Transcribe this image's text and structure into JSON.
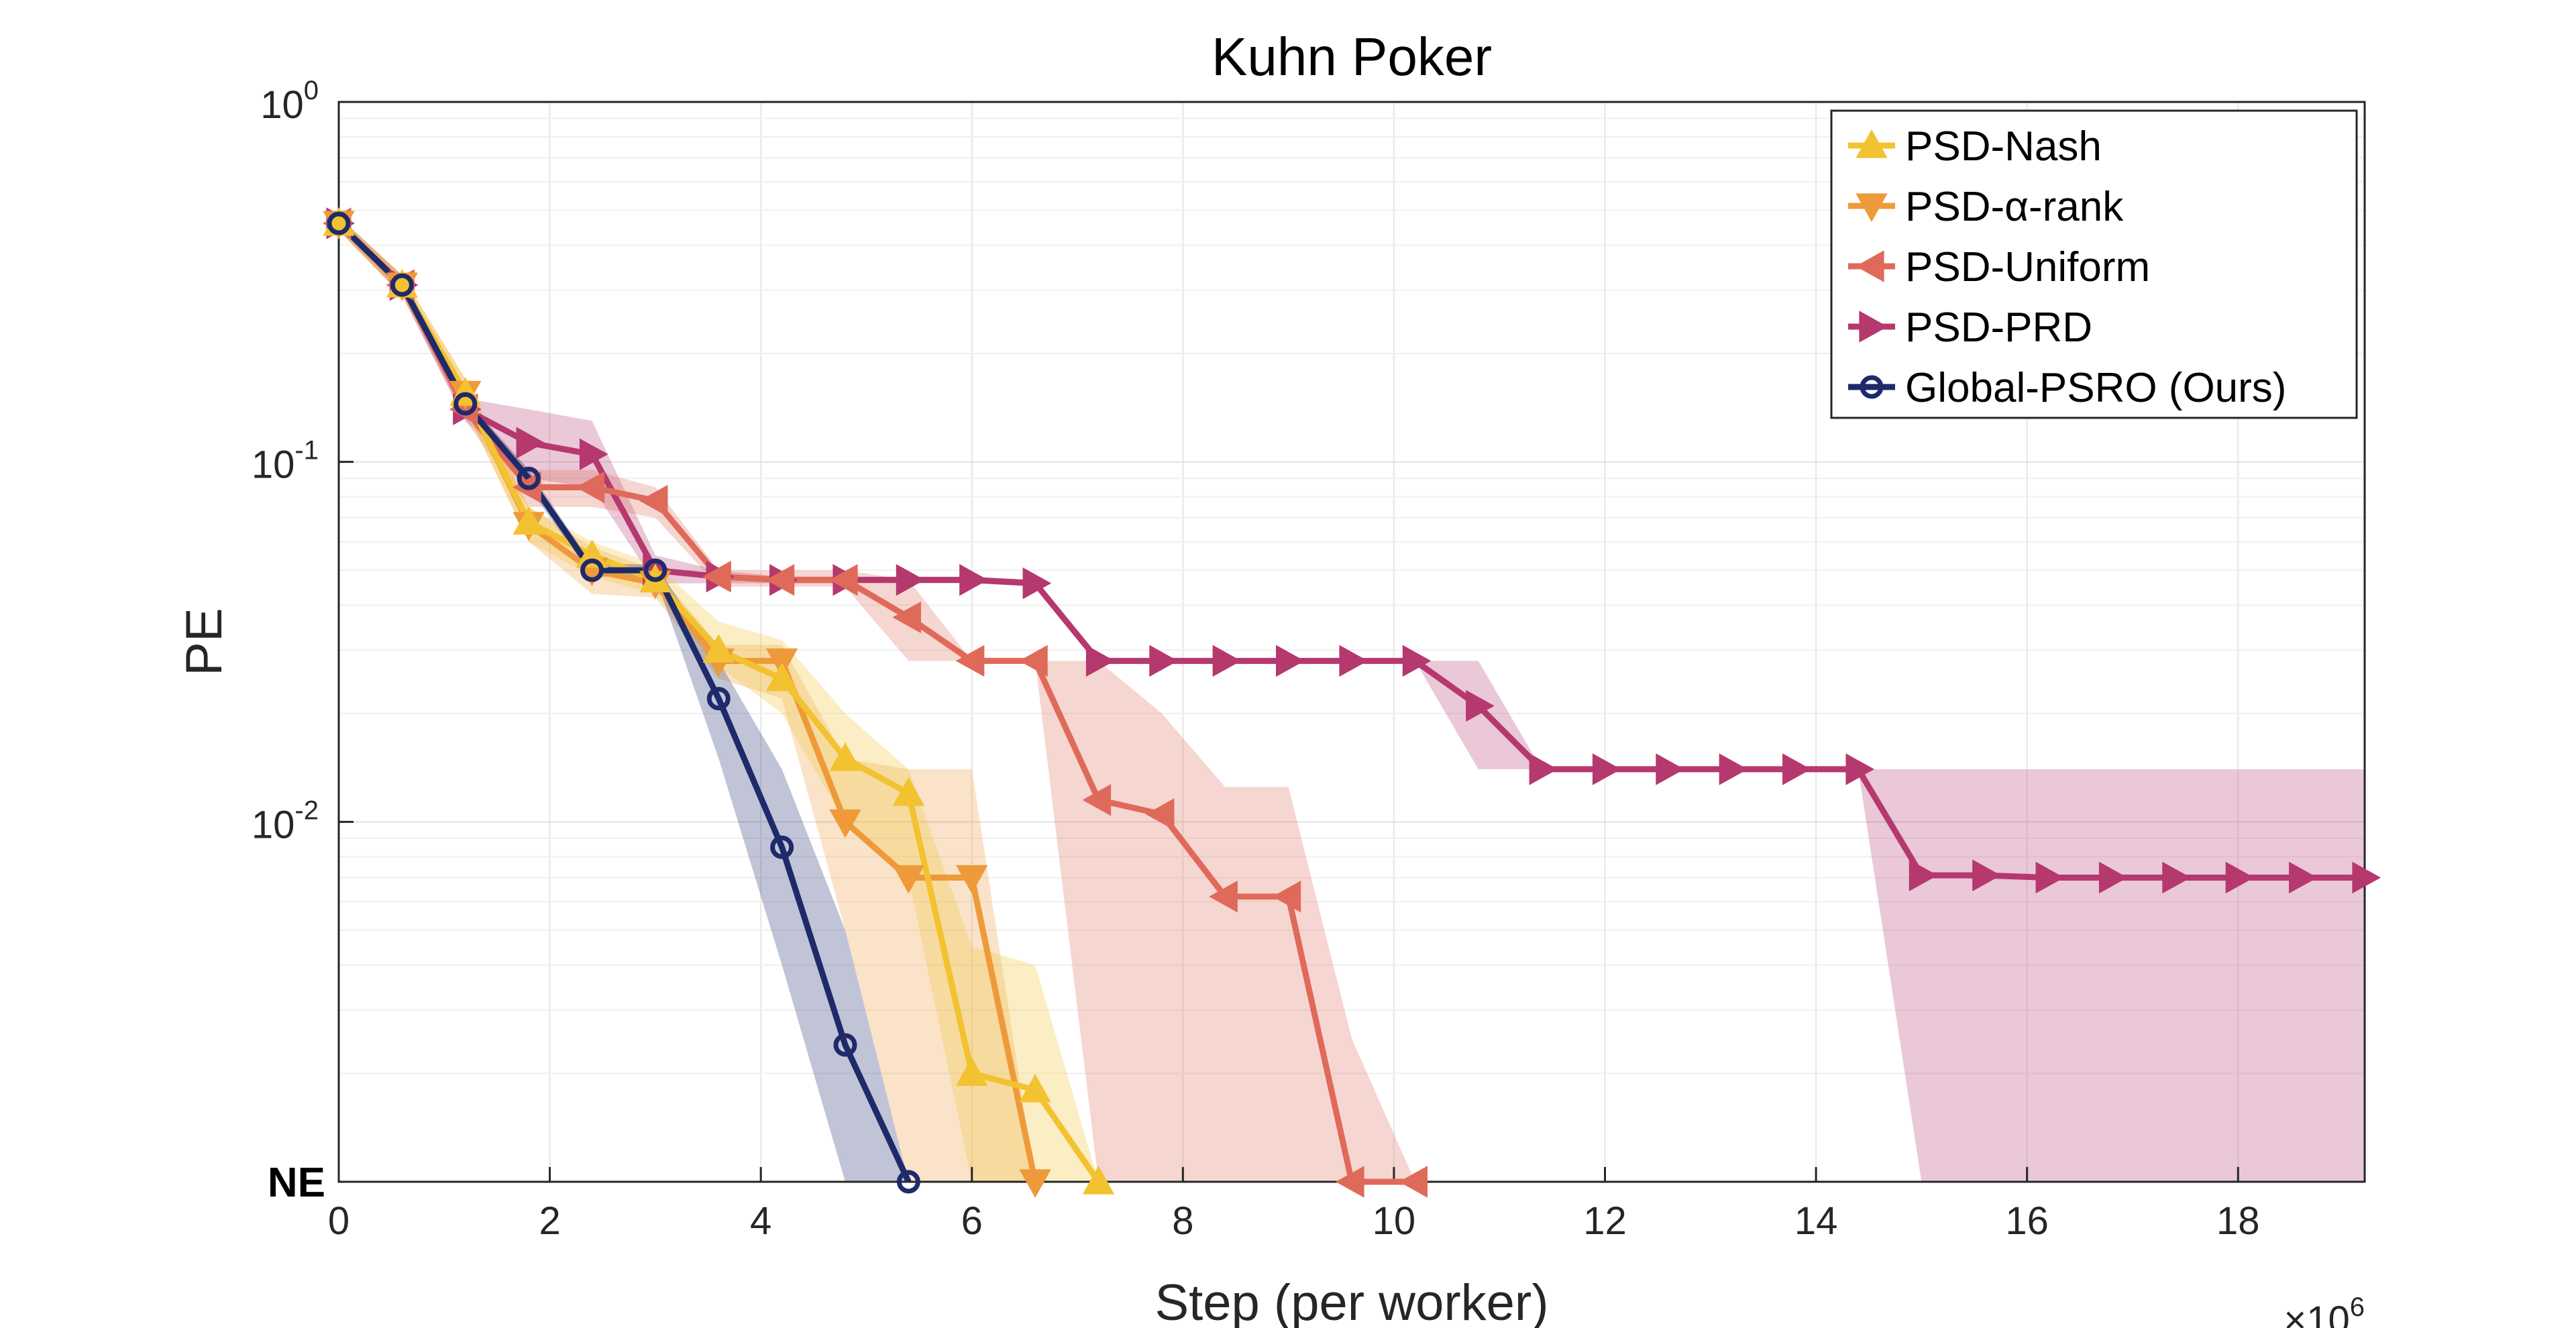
{
  "chart_data": {
    "type": "line",
    "title": "Kuhn Poker",
    "xlabel": "Step (per worker)",
    "ylabel": "PE",
    "x_multiplier_label": "×10",
    "x_multiplier_exp": "6",
    "xlim": [
      0,
      19.2
    ],
    "x_ticks": [
      0,
      2,
      4,
      6,
      8,
      10,
      12,
      14,
      16,
      18
    ],
    "y_scale": "log",
    "ylim": [
      0.001,
      1
    ],
    "y_ticks": [
      {
        "base": "10",
        "exp": "0",
        "value": 1
      },
      {
        "base": "10",
        "exp": "-1",
        "value": 0.1
      },
      {
        "base": "10",
        "exp": "-2",
        "value": 0.01
      }
    ],
    "ne_label": "NE",
    "grid": true,
    "legend_position": "top-right",
    "series": [
      {
        "name": "PSD-Nash",
        "color": "#F2C230",
        "marker": "triangle-up",
        "x": [
          0,
          0.6,
          1.2,
          1.8,
          2.4,
          3.0,
          3.6,
          4.2,
          4.8,
          5.4,
          6.0,
          6.6,
          7.2
        ],
        "y": [
          0.46,
          0.31,
          0.155,
          0.068,
          0.055,
          0.047,
          0.03,
          0.025,
          0.015,
          0.012,
          0.002,
          0.0018,
          "NE"
        ],
        "band_low": [
          0.44,
          0.29,
          0.14,
          0.06,
          0.048,
          0.043,
          0.027,
          0.02,
          0.01,
          0.007,
          0.001,
          0.001,
          0.001
        ],
        "band_high": [
          0.48,
          0.33,
          0.17,
          0.075,
          0.06,
          0.052,
          0.036,
          0.032,
          0.02,
          0.014,
          0.0045,
          0.004,
          0.001
        ]
      },
      {
        "name": "PSD-α-rank",
        "color": "#EE9A3A",
        "marker": "triangle-down",
        "x": [
          0,
          0.6,
          1.2,
          1.8,
          2.4,
          3.0,
          3.6,
          4.2,
          4.8,
          5.4,
          6.0,
          6.6
        ],
        "y": [
          0.46,
          0.31,
          0.155,
          0.067,
          0.05,
          0.046,
          0.028,
          0.028,
          0.01,
          0.007,
          0.007,
          "NE"
        ],
        "band_low": [
          0.44,
          0.29,
          0.14,
          0.06,
          0.043,
          0.042,
          0.025,
          0.022,
          0.005,
          0.001,
          0.001,
          0.001
        ],
        "band_high": [
          0.48,
          0.33,
          0.17,
          0.075,
          0.058,
          0.05,
          0.031,
          0.031,
          0.015,
          0.014,
          0.014,
          0.001
        ]
      },
      {
        "name": "PSD-Uniform",
        "color": "#E06A5A",
        "marker": "triangle-left",
        "x": [
          0,
          0.6,
          1.2,
          1.8,
          2.4,
          3.0,
          3.6,
          4.2,
          4.8,
          5.4,
          6.0,
          6.6,
          7.2,
          7.8,
          8.4,
          9.0,
          9.6,
          10.2
        ],
        "y": [
          0.46,
          0.31,
          0.14,
          0.085,
          0.085,
          0.078,
          0.048,
          0.047,
          0.047,
          0.037,
          0.028,
          0.028,
          0.0115,
          0.0105,
          0.0062,
          0.0062,
          "NE",
          "NE"
        ],
        "band_low": [
          0.44,
          0.29,
          0.13,
          0.075,
          0.075,
          0.07,
          0.045,
          0.045,
          0.045,
          0.028,
          0.028,
          0.028,
          0.001,
          0.001,
          0.001,
          0.001,
          0.001,
          0.001
        ],
        "band_high": [
          0.48,
          0.33,
          0.15,
          0.095,
          0.095,
          0.085,
          0.05,
          0.05,
          0.05,
          0.047,
          0.028,
          0.028,
          0.028,
          0.02,
          0.0125,
          0.0125,
          0.0025,
          0.001
        ]
      },
      {
        "name": "PSD-PRD",
        "color": "#B5386E",
        "marker": "triangle-right",
        "x": [
          0,
          0.6,
          1.2,
          1.8,
          2.4,
          3.0,
          3.6,
          4.2,
          4.8,
          5.4,
          6.0,
          6.6,
          7.2,
          7.8,
          8.4,
          9.0,
          9.6,
          10.2,
          10.8,
          11.4,
          12.0,
          12.6,
          13.2,
          13.8,
          14.4,
          15.0,
          15.6,
          16.2,
          16.8,
          17.4,
          18.0,
          18.6,
          19.2
        ],
        "y": [
          0.46,
          0.31,
          0.14,
          0.113,
          0.105,
          0.05,
          0.048,
          0.047,
          0.047,
          0.047,
          0.047,
          0.046,
          0.028,
          0.028,
          0.028,
          0.028,
          0.028,
          0.028,
          0.021,
          0.014,
          0.014,
          0.014,
          0.014,
          0.014,
          0.014,
          0.0071,
          0.0071,
          0.007,
          0.007,
          0.007,
          0.007,
          0.007,
          0.007
        ],
        "band_low": [
          0.44,
          0.29,
          0.13,
          0.09,
          0.085,
          0.046,
          0.046,
          0.046,
          0.046,
          0.046,
          0.046,
          0.045,
          0.028,
          0.028,
          0.028,
          0.028,
          0.028,
          0.028,
          0.014,
          0.014,
          0.014,
          0.014,
          0.014,
          0.014,
          0.014,
          0.001,
          0.001,
          0.001,
          0.001,
          0.001,
          0.001,
          0.001,
          0.001
        ],
        "band_high": [
          0.48,
          0.33,
          0.15,
          0.14,
          0.13,
          0.055,
          0.05,
          0.048,
          0.048,
          0.048,
          0.048,
          0.047,
          0.028,
          0.028,
          0.028,
          0.028,
          0.028,
          0.028,
          0.028,
          0.014,
          0.014,
          0.014,
          0.014,
          0.014,
          0.014,
          0.014,
          0.014,
          0.014,
          0.014,
          0.014,
          0.014,
          0.014,
          0.014
        ]
      },
      {
        "name": "Global-PSRO (Ours)",
        "color": "#1F2A6B",
        "marker": "circle",
        "x": [
          0,
          0.6,
          1.2,
          1.8,
          2.4,
          3.0,
          3.6,
          4.2,
          4.8,
          5.4
        ],
        "y": [
          0.46,
          0.31,
          0.145,
          0.09,
          0.05,
          0.05,
          0.022,
          0.0085,
          0.0024,
          "NE"
        ],
        "band_low": [
          0.45,
          0.3,
          0.14,
          0.085,
          0.048,
          0.048,
          0.015,
          0.004,
          0.001,
          0.001
        ],
        "band_high": [
          0.47,
          0.32,
          0.15,
          0.095,
          0.052,
          0.052,
          0.028,
          0.014,
          0.005,
          0.001
        ]
      }
    ]
  }
}
